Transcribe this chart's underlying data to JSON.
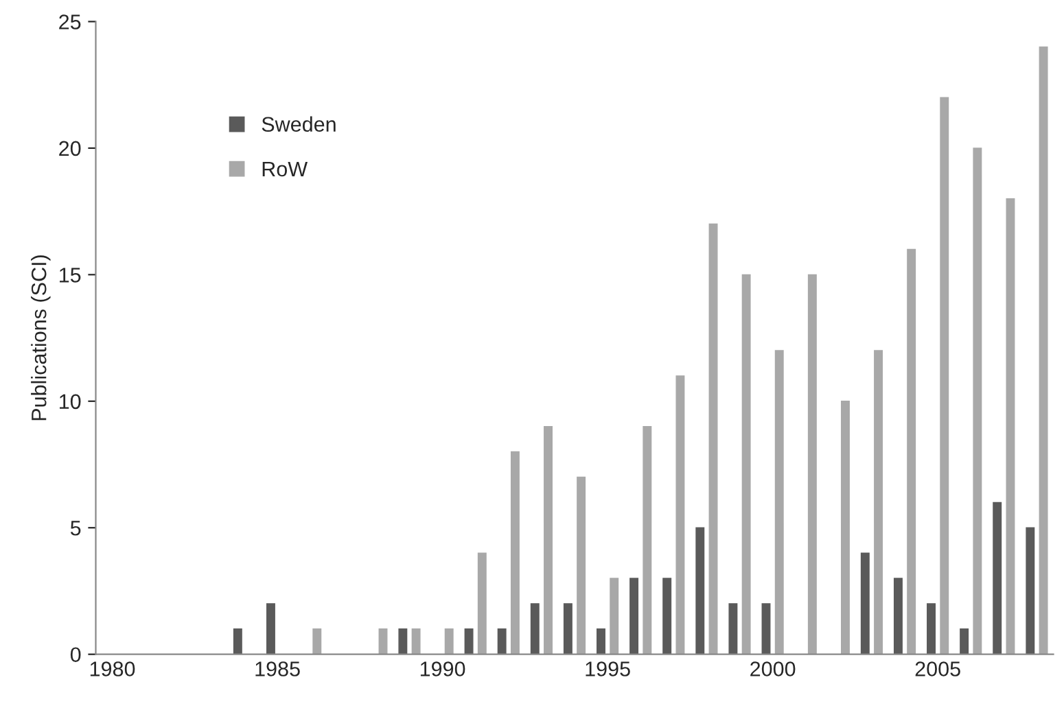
{
  "chart_data": {
    "type": "bar",
    "ylabel": "Publications (SCI)",
    "categories": [
      "1980",
      null,
      null,
      null,
      null,
      "1985",
      null,
      null,
      null,
      null,
      "1990",
      null,
      null,
      null,
      null,
      "1995",
      null,
      null,
      null,
      null,
      "2000",
      null,
      null,
      null,
      null,
      "2005",
      null,
      null,
      null
    ],
    "series": [
      {
        "name": "Sweden",
        "color": "#5a5a5a",
        "values": [
          0,
          0,
          0,
          0,
          1,
          2,
          0,
          0,
          0,
          1,
          0,
          1,
          1,
          2,
          2,
          1,
          3,
          3,
          5,
          2,
          2,
          0,
          0,
          4,
          3,
          2,
          1,
          6,
          5
        ]
      },
      {
        "name": "RoW",
        "color": "#a8a8a8",
        "values": [
          0,
          0,
          0,
          0,
          0,
          0,
          1,
          0,
          1,
          1,
          1,
          4,
          8,
          9,
          7,
          3,
          9,
          11,
          17,
          15,
          12,
          15,
          10,
          12,
          16,
          22,
          20,
          18,
          24
        ]
      }
    ],
    "ylim": [
      0,
      25
    ],
    "yticks": [
      0,
      5,
      10,
      15,
      20,
      25
    ],
    "grid": false,
    "legend": "top left"
  }
}
